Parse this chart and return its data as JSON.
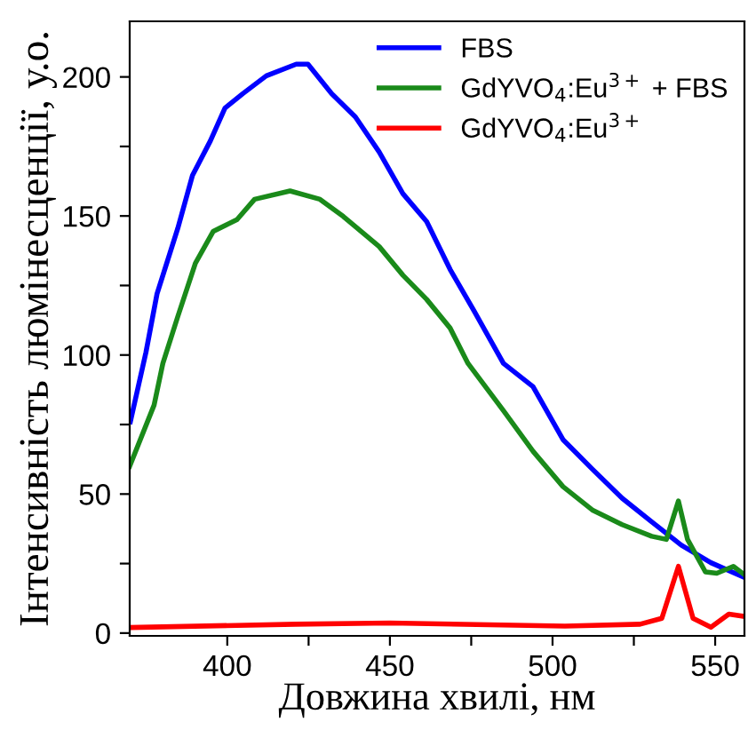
{
  "chart_data": {
    "type": "line",
    "xlabel": "Довжина хвилі, нм",
    "ylabel": "Інтенсивність люмінесценції, у.о.",
    "xlim": [
      370,
      559
    ],
    "ylim": [
      -1,
      220
    ],
    "xticks": [
      400,
      {
        "value": 425,
        "label": null
      },
      450,
      {
        "value": 475,
        "label": null
      },
      500,
      {
        "value": 525,
        "label": null
      },
      550
    ],
    "yticks": [
      0,
      {
        "value": 25,
        "label": null
      },
      50,
      {
        "value": 75,
        "label": null
      },
      100,
      {
        "value": 125,
        "label": null
      },
      150,
      {
        "value": 175,
        "label": null
      },
      200
    ],
    "grid": false,
    "legend": "top right",
    "marker": "none",
    "line_style": "solid",
    "series": [
      {
        "name": "FBS",
        "color": "#0000ff",
        "x": [
          370.2,
          375,
          378.4,
          384.8,
          389.3,
          394.8,
          399.3,
          404.8,
          412,
          421.2,
          424.8,
          432.1,
          439.4,
          446.7,
          454,
          461.3,
          468.5,
          475.8,
          484.9,
          494,
          503.2,
          512.2,
          521.4,
          530.5,
          539.6,
          548.7,
          559
        ],
        "values": [
          76,
          101,
          122,
          145.6,
          164.6,
          177,
          188.8,
          194,
          200.4,
          204.6,
          204.6,
          194,
          185.6,
          173,
          158,
          148,
          130.8,
          116,
          97,
          88.6,
          69.6,
          59,
          48.5,
          40,
          31.6,
          25.3,
          20
        ]
      },
      {
        "name": "GdYVO$_{4}$:Eu$^{3+}$ + FBS",
        "color": "#1a8a1a",
        "x": [
          370,
          377.5,
          380.2,
          384.8,
          390.2,
          395.7,
          403,
          408.4,
          419.3,
          428.5,
          435.7,
          446.7,
          454,
          461.3,
          468.5,
          474,
          484.9,
          494,
          503.2,
          512.2,
          521.4,
          530.5,
          535,
          538.7,
          541.5,
          547,
          550.5,
          555.6,
          559
        ],
        "values": [
          60,
          82,
          97,
          113.9,
          133,
          144.5,
          148.7,
          156,
          159,
          156,
          149.8,
          139,
          128.7,
          120,
          109.7,
          97,
          80,
          65.4,
          52.7,
          44.3,
          39,
          34.8,
          33.7,
          47.5,
          33.7,
          22,
          21.5,
          24,
          21
        ]
      },
      {
        "name": "GdYVO$_{4}$:Eu$^{3+}$",
        "color": "#ff0000",
        "x": [
          370,
          421,
          450,
          503.8,
          526.9,
          533.6,
          538.7,
          543.2,
          548.7,
          554.2,
          559
        ],
        "values": [
          2,
          3.2,
          3.6,
          2.5,
          3.2,
          5.3,
          24,
          5.3,
          2.1,
          6.8,
          6
        ]
      }
    ]
  }
}
